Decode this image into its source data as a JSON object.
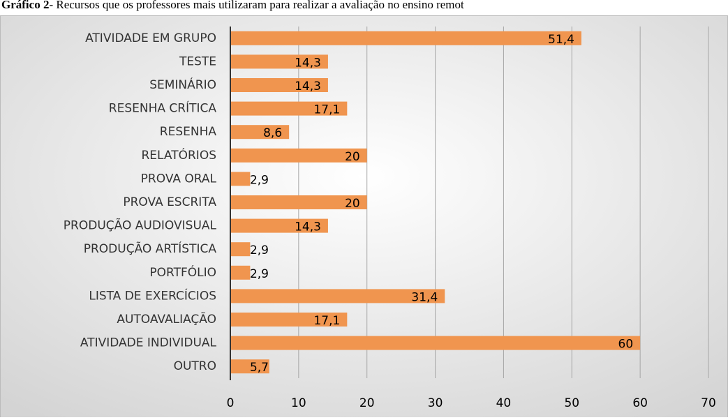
{
  "chart_data": {
    "type": "hbar",
    "figure_label": "Gráfico 2",
    "title": "- Recursos que os professores mais utilizaram para realizar a avaliação no ensino remot",
    "categories": [
      "ATIVIDADE EM GRUPO",
      "TESTE",
      "SEMINÁRIO",
      "RESENHA CRÍTICA",
      "RESENHA",
      "RELATÓRIOS",
      "PROVA ORAL",
      "PROVA ESCRITA",
      "PRODUÇÃO AUDIOVISUAL",
      "PRODUÇÃO ARTÍSTICA",
      "PORTFÓLIO",
      "LISTA DE EXERCÍCIOS",
      "AUTOAVALIAÇÃO",
      "ATIVIDADE INDIVIDUAL",
      "OUTRO"
    ],
    "values": [
      51.4,
      14.3,
      14.3,
      17.1,
      8.6,
      20,
      2.9,
      20,
      14.3,
      2.9,
      2.9,
      31.4,
      17.1,
      60,
      5.7
    ],
    "value_labels": [
      "51,4",
      "14,3",
      "14,3",
      "17,1",
      "8,6",
      "20",
      "2,9",
      "20",
      "14,3",
      "2,9",
      "2,9",
      "31,4",
      "17,1",
      "60",
      "5,7"
    ],
    "color": "#f0954f",
    "xlim": [
      0,
      70
    ],
    "xticks": [
      0,
      10,
      20,
      30,
      40,
      50,
      60,
      70
    ],
    "grid": true
  }
}
